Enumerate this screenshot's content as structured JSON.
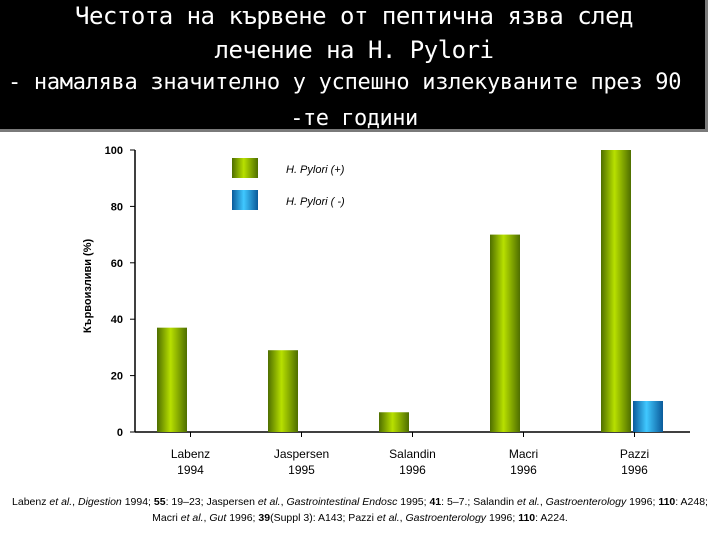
{
  "title": {
    "line1": "Честота на кървене от пептична язва след",
    "line2": "лечение на H. Pylori",
    "line3": "- намалява значително у успешно излекуваните през 90",
    "line4": "-те години"
  },
  "colors": {
    "positive": "#86b000",
    "negative": "#1aa8e8",
    "background": "#000000",
    "title_text": "#ffffff"
  },
  "chart_data": {
    "type": "bar",
    "ylabel": "Кървоизливи (%)",
    "xlabel": "",
    "ylim": [
      0,
      100
    ],
    "yticks": [
      "0",
      "20",
      "40",
      "60",
      "80",
      "100"
    ],
    "categories": [
      [
        "Labenz",
        "1994"
      ],
      [
        "Jaspersen",
        "1995"
      ],
      [
        "Salandin",
        "1996"
      ],
      [
        "Macri",
        "1996"
      ],
      [
        "Pazzi",
        "1996"
      ]
    ],
    "series": [
      {
        "name": "H. Pylori (+)",
        "values": [
          37,
          29,
          7,
          70,
          100
        ]
      },
      {
        "name": "H. Pylori ( -)",
        "values": [
          null,
          null,
          null,
          null,
          11
        ]
      }
    ],
    "legend_position": "top-center",
    "grid": false
  },
  "footnote": [
    {
      "t": "Labenz "
    },
    {
      "t": "et al.",
      "s": "i"
    },
    {
      "t": ", "
    },
    {
      "t": "Digestion",
      "s": "i"
    },
    {
      "t": " 1994; "
    },
    {
      "t": "55",
      "s": "b"
    },
    {
      "t": ": 19–23; Jaspersen "
    },
    {
      "t": "et al.",
      "s": "i"
    },
    {
      "t": ", "
    },
    {
      "t": "Gastrointestinal Endosc",
      "s": "i"
    },
    {
      "t": " 1995; "
    },
    {
      "t": "41",
      "s": "b"
    },
    {
      "t": ": 5–7.; Salandin "
    },
    {
      "t": "et al.",
      "s": "i"
    },
    {
      "t": ", "
    },
    {
      "t": "Gastroenterology",
      "s": "i"
    },
    {
      "t": " 1996; "
    },
    {
      "t": "110",
      "s": "b"
    },
    {
      "t": ": A248; Macri "
    },
    {
      "t": "et al.",
      "s": "i"
    },
    {
      "t": ", "
    },
    {
      "t": "Gut",
      "s": "i"
    },
    {
      "t": " 1996; "
    },
    {
      "t": "39",
      "s": "b"
    },
    {
      "t": "(Suppl 3): A143; Pazzi "
    },
    {
      "t": "et al.",
      "s": "i"
    },
    {
      "t": ", "
    },
    {
      "t": "Gastroenterology",
      "s": "i"
    },
    {
      "t": " 1996; "
    },
    {
      "t": "110",
      "s": "b"
    },
    {
      "t": ": A224."
    }
  ]
}
